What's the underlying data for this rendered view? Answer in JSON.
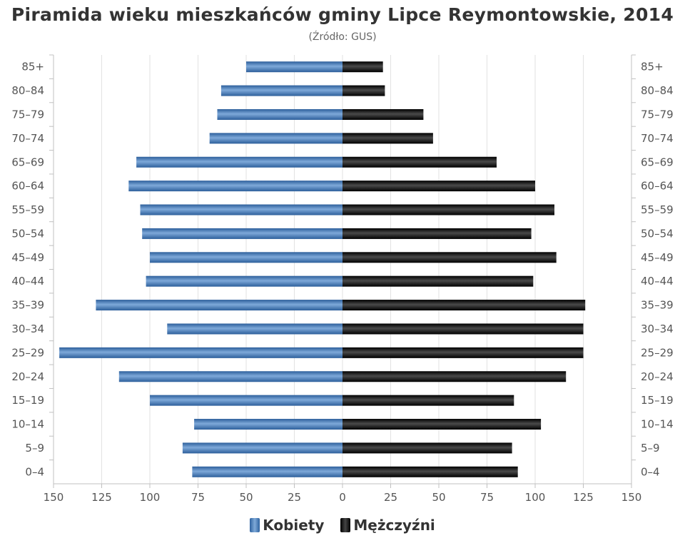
{
  "chart_data": {
    "type": "bar",
    "orientation": "horizontal",
    "title": "Piramida wieku mieszkańców gminy Lipce Reymontowskie, 2014",
    "subtitle": "(Źródło: GUS)",
    "categories": [
      "85+",
      "80–84",
      "75–79",
      "70–74",
      "65–69",
      "60–64",
      "55–59",
      "50–54",
      "45–49",
      "40–44",
      "35–39",
      "30–34",
      "25–29",
      "20–24",
      "15–19",
      "10–14",
      "5–9",
      "0–4"
    ],
    "series": [
      {
        "name": "Kobiety",
        "color": "#3d74b5",
        "values": [
          50,
          63,
          65,
          69,
          107,
          111,
          105,
          104,
          100,
          102,
          128,
          91,
          147,
          116,
          100,
          77,
          83,
          78
        ]
      },
      {
        "name": "Mężczyźni",
        "color": "#111111",
        "values": [
          21,
          22,
          42,
          47,
          80,
          100,
          110,
          98,
          111,
          99,
          126,
          125,
          125,
          116,
          89,
          103,
          88,
          91
        ]
      }
    ],
    "xlim": [
      -150,
      150
    ],
    "x_ticks": [
      "150",
      "125",
      "100",
      "75",
      "50",
      "25",
      "0",
      "25",
      "50",
      "75",
      "100",
      "125",
      "150"
    ],
    "grid": true,
    "legend_position": "bottom-center"
  }
}
